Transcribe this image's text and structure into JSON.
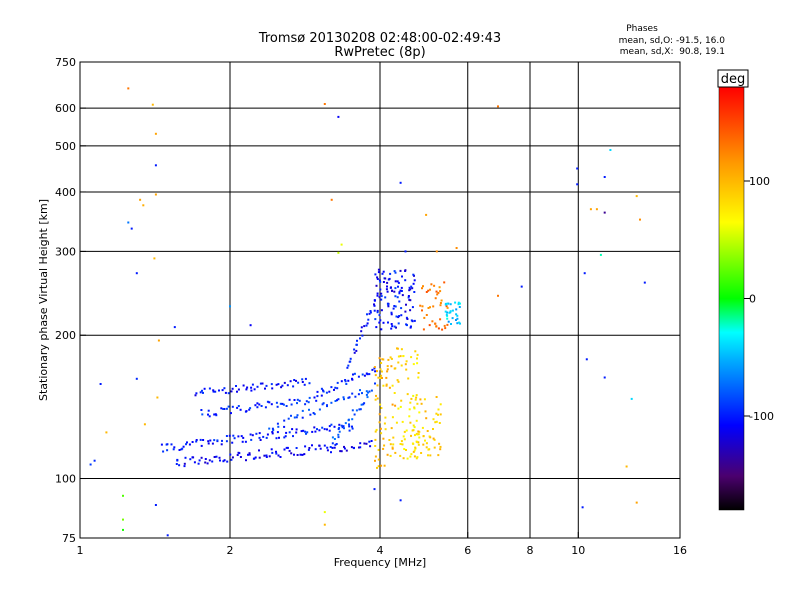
{
  "chart_data": {
    "type": "scatter",
    "title": "Tromsø 20130208 02:48:00-02:49:43",
    "subtitle": "RwPretec (8p)",
    "stats": {
      "heading": "Phases",
      "line_o": "mean, sd,O: -91.5, 16.0",
      "line_x": "mean, sd,X:  90.8, 19.1"
    },
    "xlabel": "Frequency [MHz]",
    "ylabel": "Stationary phase Virtual Height [km]",
    "x_scale": "log",
    "y_scale": "log",
    "xlim": [
      1,
      16
    ],
    "ylim": [
      75,
      750
    ],
    "grid": true,
    "x_ticks": [
      1,
      2,
      4,
      6,
      8,
      10,
      16
    ],
    "x_tick_labels": [
      "1",
      "2",
      "4",
      "6",
      "8",
      "10",
      "16"
    ],
    "x_grid": [
      2,
      4,
      6,
      8,
      10
    ],
    "y_ticks": [
      75,
      100,
      200,
      300,
      400,
      500,
      600,
      750
    ],
    "y_tick_labels": [
      "75",
      "100",
      "200",
      "300",
      "400",
      "500",
      "600",
      "750"
    ],
    "y_grid": [
      100,
      200,
      300,
      400,
      500,
      600
    ],
    "colorbar": {
      "label": "deg",
      "range": [
        -180,
        180
      ],
      "ticks": [
        100,
        0,
        -100
      ],
      "tick_labels": [
        "100",
        "0",
        "-100"
      ]
    },
    "point_color_by": "phase",
    "traces": [
      {
        "x_start": 1.45,
        "x_end": 3.55,
        "h_start": 116,
        "h_end": 129,
        "phase": -100,
        "n": 90
      },
      {
        "x_start": 1.55,
        "x_end": 3.85,
        "h_start": 108,
        "h_end": 118,
        "phase": -110,
        "n": 95
      },
      {
        "x_start": 1.75,
        "x_end": 3.0,
        "h_start": 137,
        "h_end": 147,
        "phase": -95,
        "n": 50
      },
      {
        "x_start": 1.7,
        "x_end": 2.9,
        "h_start": 151,
        "h_end": 160,
        "phase": -105,
        "n": 50
      },
      {
        "x_start": 2.4,
        "x_end": 3.9,
        "h_start": 127,
        "h_end": 156,
        "phase": -90,
        "n": 40
      },
      {
        "x_start": 3.0,
        "x_end": 3.9,
        "h_start": 150,
        "h_end": 170,
        "phase": -100,
        "n": 30
      },
      {
        "x_start": 3.45,
        "x_end": 4.0,
        "h_start": 170,
        "h_end": 245,
        "phase": -105,
        "n": 30
      },
      {
        "x_start": 3.2,
        "x_end": 3.8,
        "h_start": 118,
        "h_end": 150,
        "phase": -80,
        "n": 25
      }
    ],
    "clusters": [
      {
        "x_min": 3.9,
        "x_max": 4.7,
        "h_min": 205,
        "h_max": 275,
        "phase": -105,
        "n": 110
      },
      {
        "x_min": 3.9,
        "x_max": 4.3,
        "h_min": 105,
        "h_max": 180,
        "phase": 95,
        "n": 70
      },
      {
        "x_min": 4.3,
        "x_max": 4.8,
        "h_min": 110,
        "h_max": 190,
        "phase": 80,
        "n": 60
      },
      {
        "x_min": 4.6,
        "x_max": 5.3,
        "h_min": 110,
        "h_max": 150,
        "phase": 90,
        "n": 60
      },
      {
        "x_min": 4.8,
        "x_max": 5.5,
        "h_min": 205,
        "h_max": 260,
        "phase": 130,
        "n": 40
      },
      {
        "x_min": 5.4,
        "x_max": 5.8,
        "h_min": 210,
        "h_max": 235,
        "phase": -45,
        "n": 30
      }
    ],
    "points": [
      [
        1.05,
        107,
        -90
      ],
      [
        1.07,
        109,
        -95
      ],
      [
        1.1,
        158,
        -100
      ],
      [
        1.13,
        125,
        100
      ],
      [
        1.25,
        660,
        130
      ],
      [
        1.25,
        345,
        -70
      ],
      [
        1.27,
        335,
        -100
      ],
      [
        1.3,
        270,
        -100
      ],
      [
        1.32,
        385,
        110
      ],
      [
        1.34,
        375,
        105
      ],
      [
        1.22,
        92,
        20
      ],
      [
        1.22,
        82,
        30
      ],
      [
        1.22,
        78,
        5
      ],
      [
        1.3,
        162,
        -95
      ],
      [
        1.4,
        610,
        100
      ],
      [
        1.42,
        530,
        110
      ],
      [
        1.42,
        455,
        -100
      ],
      [
        1.42,
        395,
        110
      ],
      [
        1.41,
        290,
        100
      ],
      [
        1.44,
        195,
        110
      ],
      [
        1.43,
        148,
        100
      ],
      [
        1.5,
        76,
        -100
      ],
      [
        1.42,
        88,
        -100
      ],
      [
        1.55,
        208,
        -100
      ],
      [
        1.35,
        130,
        100
      ],
      [
        2.0,
        230,
        -60
      ],
      [
        2.2,
        210,
        -110
      ],
      [
        3.1,
        612,
        130
      ],
      [
        3.3,
        575,
        -110
      ],
      [
        3.2,
        385,
        130
      ],
      [
        3.35,
        310,
        60
      ],
      [
        3.3,
        298,
        50
      ],
      [
        3.1,
        80,
        100
      ],
      [
        3.1,
        85,
        60
      ],
      [
        3.9,
        95,
        -100
      ],
      [
        4.4,
        90,
        -100
      ],
      [
        4.4,
        418,
        -100
      ],
      [
        4.95,
        358,
        110
      ],
      [
        5.2,
        300,
        120
      ],
      [
        5.7,
        305,
        120
      ],
      [
        4.5,
        300,
        -100
      ],
      [
        6.9,
        605,
        130
      ],
      [
        6.9,
        242,
        130
      ],
      [
        7.7,
        253,
        -100
      ],
      [
        9.95,
        448,
        -100
      ],
      [
        9.95,
        415,
        -100
      ],
      [
        10.2,
        87,
        -100
      ],
      [
        10.6,
        368,
        110
      ],
      [
        10.9,
        368,
        110
      ],
      [
        11.3,
        362,
        -140
      ],
      [
        11.1,
        295,
        -20
      ],
      [
        11.3,
        430,
        -100
      ],
      [
        11.6,
        490,
        -40
      ],
      [
        11.3,
        163,
        -100
      ],
      [
        13.1,
        392,
        100
      ],
      [
        13.3,
        350,
        120
      ],
      [
        13.6,
        258,
        -100
      ],
      [
        12.8,
        147,
        -40
      ],
      [
        12.5,
        106,
        100
      ],
      [
        13.1,
        89,
        110
      ],
      [
        10.3,
        270,
        -100
      ],
      [
        10.4,
        178,
        -100
      ]
    ]
  }
}
